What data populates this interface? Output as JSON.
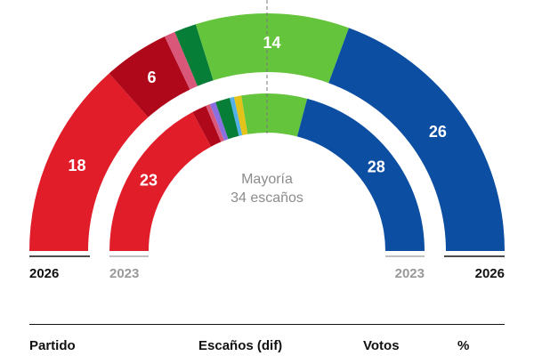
{
  "chart_data": {
    "type": "parliament-semicircle",
    "total_seats": 67,
    "rings": [
      {
        "year": "2026",
        "seats": [
          {
            "seats": 18,
            "color": "#e11d2a",
            "label": "18"
          },
          {
            "seats": 6,
            "color": "#b0081b",
            "label": "6"
          },
          {
            "seats": 1,
            "color": "#d9587a",
            "label": ""
          },
          {
            "seats": 2,
            "color": "#067e38",
            "label": ""
          },
          {
            "seats": 14,
            "color": "#64c43b",
            "label": "14"
          },
          {
            "seats": 26,
            "color": "#0b4ea2",
            "label": "26"
          }
        ]
      },
      {
        "year": "2023",
        "seats": [
          {
            "seats": 23,
            "color": "#e11d2a",
            "label": "23"
          },
          {
            "seats": 2,
            "color": "#b0081b",
            "label": ""
          },
          {
            "seats": 0.6,
            "color": "#d9587a",
            "label": ""
          },
          {
            "seats": 0.8,
            "color": "#8b6fe0",
            "label": ""
          },
          {
            "seats": 2,
            "color": "#067e38",
            "label": ""
          },
          {
            "seats": 0.6,
            "color": "#53b0e8",
            "label": ""
          },
          {
            "seats": 1,
            "color": "#e3c21a",
            "label": ""
          },
          {
            "seats": 9,
            "color": "#64c43b",
            "label": ""
          },
          {
            "seats": 28,
            "color": "#0b4ea2",
            "label": "28"
          }
        ]
      }
    ],
    "majority": {
      "line1": "Mayoría",
      "line2": "34 escaños"
    }
  },
  "years": {
    "outer": "2026",
    "inner": "2023"
  },
  "table_header": {
    "party": "Partido",
    "seats": "Escaños (dif)",
    "votes": "Votos",
    "pct": "%"
  }
}
